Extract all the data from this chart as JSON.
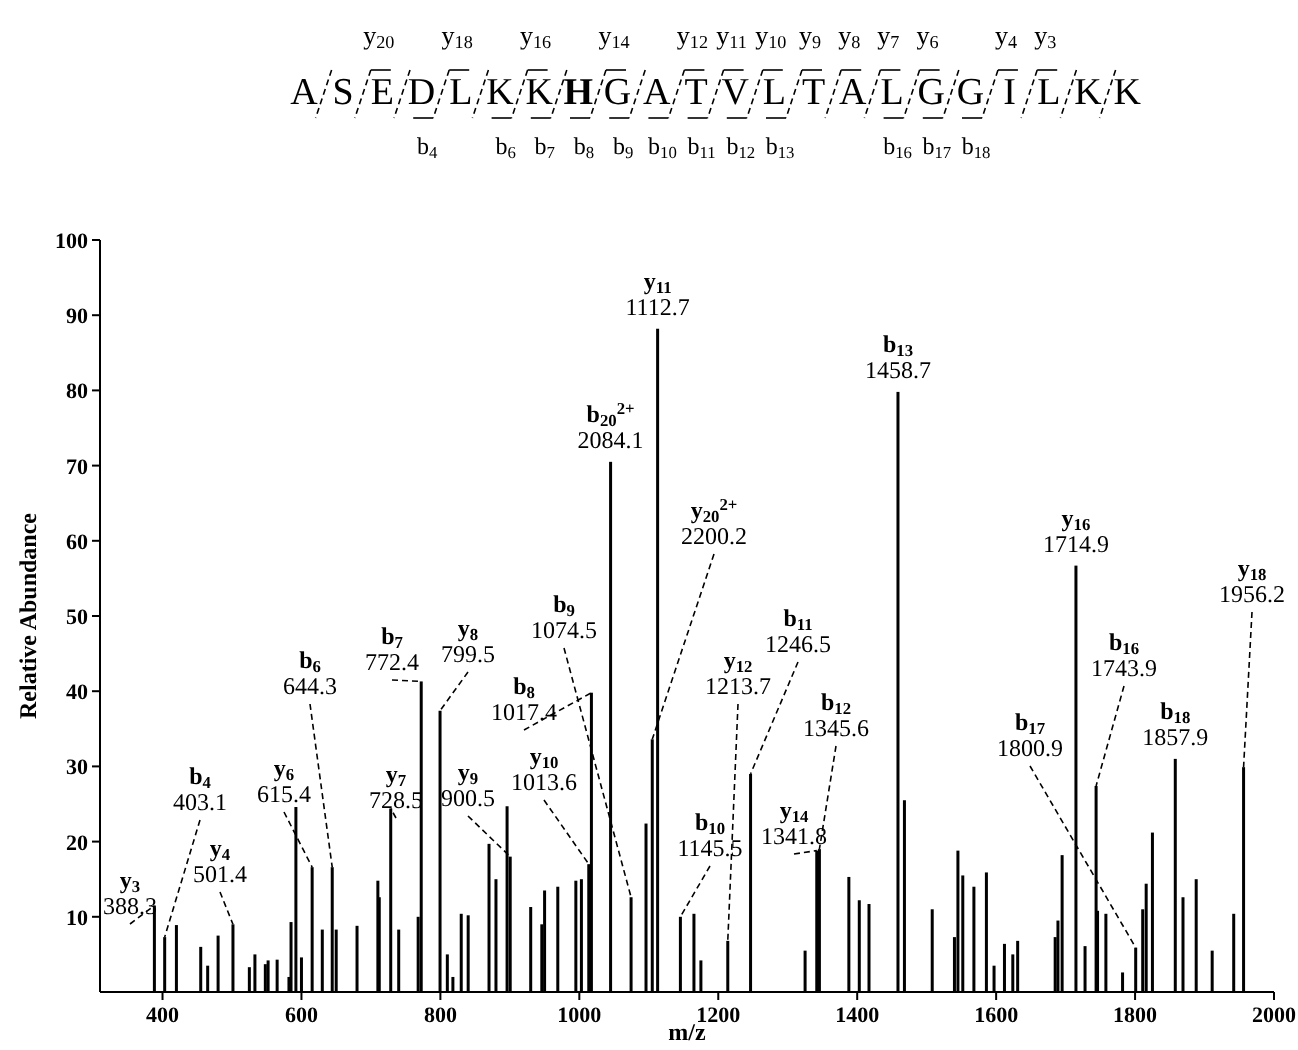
{
  "chart_data": {
    "type": "bar",
    "xlabel": "m/z",
    "ylabel": "Relative Abundance",
    "color": "#000000",
    "x": [
      388.3,
      403.1,
      420,
      455,
      465,
      480,
      501.4,
      525,
      533,
      548,
      552,
      565,
      582,
      585,
      592,
      600,
      615.4,
      630,
      644.3,
      650,
      680,
      710,
      712,
      728.5,
      740,
      768,
      772.4,
      799.5,
      810,
      818,
      830,
      840,
      870,
      880,
      896,
      900.5,
      930,
      946,
      950,
      969,
      995,
      1003,
      1013.6,
      1017.4,
      1045,
      1074.5,
      1096,
      1105,
      1112.7,
      1145.5,
      1165,
      1175,
      1213.7,
      1246.5,
      1325,
      1341.8,
      1345.6,
      1388,
      1403,
      1417,
      1458.7,
      1468,
      1508,
      1540,
      1545,
      1552,
      1568,
      1586,
      1597,
      1612,
      1624,
      1631,
      1685,
      1689,
      1695,
      1714.9,
      1728,
      1743.9,
      1746,
      1758,
      1782,
      1800.9,
      1811,
      1816,
      1825,
      1857.9,
      1869,
      1888,
      1911,
      1942,
      1956.2
    ],
    "values": [
      11.5,
      7.3,
      8.9,
      6,
      3.5,
      7.5,
      9,
      3.3,
      5,
      3.7,
      4.2,
      4.3,
      2,
      9.3,
      24.6,
      4.6,
      16.6,
      8.3,
      16.6,
      8.3,
      8.8,
      14.8,
      12.6,
      24.4,
      8.3,
      10,
      41.3,
      37.4,
      5,
      2,
      10.4,
      10.2,
      19.7,
      15,
      24.7,
      18,
      11.3,
      9,
      13.5,
      14,
      14.8,
      15,
      17,
      39.8,
      70.5,
      12.6,
      22.4,
      33.6,
      88.2,
      10,
      10.4,
      4.2,
      6.8,
      29,
      5.5,
      18.8,
      19,
      15.3,
      12.2,
      11.7,
      79.8,
      25.5,
      11,
      7.3,
      18.8,
      15.5,
      14,
      15.9,
      3.5,
      6.4,
      5,
      6.8,
      7.3,
      9.5,
      18.2,
      56.7,
      6.1,
      27.4,
      10.8,
      10.4,
      2.6,
      5.9,
      11,
      14.4,
      21.2,
      31,
      12.6,
      15,
      5.5,
      10.4,
      29.9
    ],
    "xlim": [
      310,
      2000
    ],
    "xticks": [
      400,
      600,
      800,
      1000,
      1200,
      1400,
      1600,
      1800,
      2000
    ],
    "ylim": [
      0,
      100
    ],
    "yticks": [
      10,
      20,
      30,
      40,
      50,
      60,
      70,
      80,
      90,
      100
    ],
    "grid": false,
    "annotations": [
      "ASEDLKKHGATVLTALGGILKK",
      "y$_{20}$",
      "y$_{18}$",
      "y$_{16}$",
      "y$_{14}$",
      "y$_{12}$",
      "y$_{11}$",
      "y$_{10}$",
      "y$_{9}$",
      "y$_{8}$",
      "y$_{7}$",
      "y$_{6}$",
      "y$_{4}$",
      "y$_{3}$",
      "b$_{4}$",
      "b$_{6}$",
      "b$_{7}$",
      "b$_{8}$",
      "b$_{9}$",
      "b$_{10}$",
      "b$_{11}$",
      "b$_{12}$",
      "b$_{13}$",
      "b$_{16}$",
      "b$_{17}$",
      "b$_{18}$",
      {
        "text": "y$_{3}$\n388.3",
        "x": 388.3,
        "y": 11.5
      },
      {
        "text": "b$_{4}$\n403.1",
        "x": 403.1,
        "y": 7.3
      },
      {
        "text": "y$_{4}$\n501.4",
        "x": 501.4,
        "y": 9
      },
      {
        "text": "y$_{6}$\n615.4",
        "x": 615.4,
        "y": 16.6
      },
      {
        "text": "b$_{6}$\n644.3",
        "x": 644.3,
        "y": 16.6
      },
      {
        "text": "y$_{7}$\n728.5",
        "x": 728.5,
        "y": 24.4
      },
      {
        "text": "b$_{7}$\n772.4",
        "x": 772.4,
        "y": 41.3
      },
      {
        "text": "y$_{8}$\n799.5",
        "x": 799.5,
        "y": 37.4
      },
      {
        "text": "y$_{9}$\n900.5",
        "x": 900.5,
        "y": 18
      },
      {
        "text": "y$_{10}$\n1013.6",
        "x": 1013.6,
        "y": 17
      },
      {
        "text": "b$_{8}$\n1017.4",
        "x": 1017.4,
        "y": 39.8
      },
      {
        "text": "b$_{9}$\n1074.5",
        "x": 1074.5,
        "y": 12.6
      },
      {
        "text": "b$_{20}$$^{2+}$\n2084.1",
        "x": 1045,
        "y": 70.5
      },
      {
        "text": "y$_{11}$\n1112.7",
        "x": 1112.7,
        "y": 88.2
      },
      {
        "text": "y$_{20}$$^{2+}$\n2200.2",
        "x": 1105,
        "y": 33.6
      },
      {
        "text": "b$_{10}$\n1145.5",
        "x": 1145.5,
        "y": 10
      },
      {
        "text": "y$_{12}$\n1213.7",
        "x": 1213.7,
        "y": 6.8
      },
      {
        "text": "b$_{11}$\n1246.5",
        "x": 1246.5,
        "y": 29
      },
      {
        "text": "b$_{12}$\n1345.6",
        "x": 1345.6,
        "y": 19
      },
      {
        "text": "y$_{14}$\n1341.8",
        "x": 1341.8,
        "y": 18.8
      },
      {
        "text": "b$_{13}$\n1458.7",
        "x": 1458.7,
        "y": 79.8
      },
      {
        "text": "y$_{16}$\n1714.9",
        "x": 1714.9,
        "y": 56.7
      },
      {
        "text": "b$_{16}$\n1743.9",
        "x": 1743.9,
        "y": 27.4
      },
      {
        "text": "b$_{17}$\n1800.9",
        "x": 1800.9,
        "y": 5.9
      },
      {
        "text": "b$_{18}$\n1857.9",
        "x": 1857.9,
        "y": 31
      },
      {
        "text": "y$_{18}$\n1956.2",
        "x": 1956.2,
        "y": 29.9
      }
    ]
  }
}
